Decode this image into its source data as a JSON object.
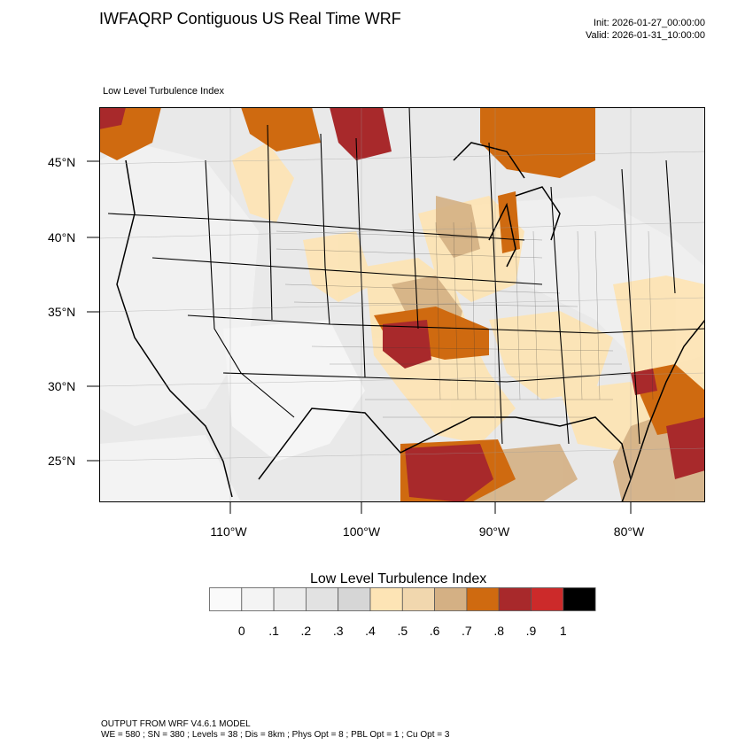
{
  "header": {
    "title": "IWFAQRP Contiguous US Real Time WRF",
    "init": "Init: 2026-01-27_00:00:00",
    "valid": "Valid: 2026-01-31_10:00:00"
  },
  "map": {
    "field_label": "Low Level Turbulence Index",
    "lat_labels": [
      "45°N",
      "40°N",
      "35°N",
      "30°N",
      "25°N"
    ],
    "lon_labels": [
      "110°W",
      "100°W",
      "90°W",
      "80°W"
    ]
  },
  "legend": {
    "title": "Low Level Turbulence Index",
    "colors": [
      "#fafafa",
      "#f4f4f4",
      "#ececec",
      "#e2e2e2",
      "#d6d6d6",
      "#fde4b5",
      "#f1d7ae",
      "#d4b084",
      "#cf6a10",
      "#a8292b",
      "#cc2a2a",
      "#000000"
    ],
    "ticks": [
      "0",
      ".1",
      ".2",
      ".3",
      ".4",
      ".5",
      ".6",
      ".7",
      ".8",
      ".9",
      "1"
    ]
  },
  "footer": {
    "line1": "OUTPUT FROM WRF V4.6.1 MODEL",
    "line2": "WE = 580 ; SN = 380 ; Levels = 38 ; Dis = 8km ; Phys Opt = 8 ; PBL Opt = 1 ; Cu Opt = 3"
  }
}
